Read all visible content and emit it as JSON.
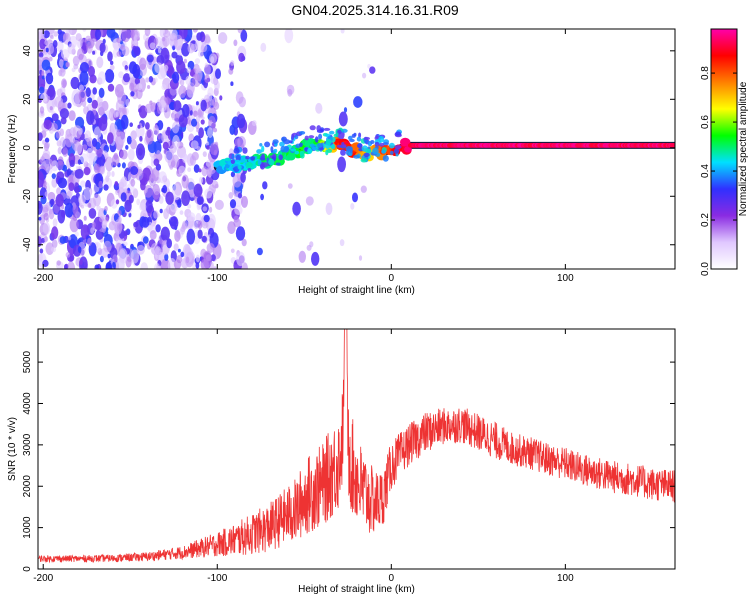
{
  "title": "GN04.2025.314.16.31.R09",
  "chart_data": [
    {
      "type": "heatmap",
      "xlabel": "Height of straight line (km)",
      "ylabel": "Frequency (Hz)",
      "xlim": [
        -203,
        163
      ],
      "ylim": [
        -50,
        49
      ],
      "x_ticks": [
        -200,
        -100,
        0,
        100
      ],
      "x_tick_labels": [
        "-200",
        "-100",
        "0",
        "100"
      ],
      "y_ticks": [
        -40,
        -20,
        0,
        20,
        40
      ],
      "y_tick_labels": [
        "-40",
        "-20",
        "0",
        "20",
        "40"
      ],
      "colorbar": {
        "label": "Normalized spectral amplitude",
        "range": [
          0,
          0.98
        ],
        "ticks": [
          0,
          0.2,
          0.4,
          0.6,
          0.8
        ],
        "tick_labels": [
          "0.0",
          "0.2",
          "0.4",
          "0.6",
          "0.8"
        ],
        "colors": [
          "#ffffff",
          "#e0c8ff",
          "#8a2be2",
          "#3030ff",
          "#00e0ff",
          "#00ff00",
          "#ffff00",
          "#ff8000",
          "#ff0000",
          "#ff00aa"
        ]
      },
      "noise_region_x": [
        -203,
        -55
      ],
      "ridge": {
        "x": [
          -100,
          -90,
          -80,
          -70,
          -60,
          -50,
          -45,
          -40,
          -35,
          -30,
          -25,
          -20,
          -15,
          -10,
          -5,
          0,
          5,
          10,
          50,
          100,
          163
        ],
        "y": [
          -8,
          -7,
          -6,
          -5,
          -3,
          0,
          2,
          1,
          1,
          1,
          0,
          -1,
          -3,
          -1,
          -2,
          -1,
          0,
          1,
          1,
          1,
          1
        ],
        "amplitude": [
          0.35,
          0.4,
          0.4,
          0.45,
          0.45,
          0.5,
          0.45,
          0.55,
          0.7,
          0.85,
          0.9,
          0.8,
          0.7,
          0.75,
          0.8,
          0.85,
          0.9,
          0.95,
          0.95,
          0.95,
          0.95
        ]
      },
      "grid": false
    },
    {
      "type": "line",
      "xlabel": "Height of straight line (km)",
      "ylabel": "SNR (10 * v/v)",
      "xlim": [
        -203,
        163
      ],
      "ylim": [
        0,
        5800
      ],
      "x_ticks": [
        -200,
        -100,
        0,
        100
      ],
      "x_tick_labels": [
        "-200",
        "-100",
        "0",
        "100"
      ],
      "y_ticks": [
        0,
        1000,
        2000,
        3000,
        4000,
        5000
      ],
      "y_tick_labels": [
        "0",
        "1000",
        "2000",
        "3000",
        "4000",
        "5000"
      ],
      "series": [
        {
          "color": "#ee3333",
          "x": [
            -203,
            -180,
            -160,
            -140,
            -120,
            -100,
            -90,
            -80,
            -70,
            -60,
            -55,
            -50,
            -45,
            -40,
            -35,
            -30,
            -28,
            -26,
            -25,
            -22,
            -20,
            -15,
            -10,
            -5,
            0,
            10,
            20,
            30,
            40,
            50,
            60,
            70,
            80,
            90,
            100,
            110,
            120,
            130,
            140,
            150,
            163
          ],
          "values": [
            250,
            250,
            260,
            300,
            400,
            600,
            700,
            850,
            1000,
            1300,
            1400,
            1700,
            1900,
            2000,
            2300,
            2600,
            3200,
            5800,
            3000,
            2400,
            2200,
            1800,
            1600,
            1700,
            2500,
            3000,
            3300,
            3450,
            3500,
            3300,
            3100,
            2900,
            2800,
            2650,
            2550,
            2400,
            2300,
            2200,
            2150,
            2050,
            2000
          ],
          "noise_amplitude": [
            80,
            80,
            90,
            110,
            160,
            300,
            400,
            500,
            600,
            700,
            800,
            900,
            1000,
            1000,
            1100,
            1200,
            1200,
            200,
            1300,
            1200,
            1100,
            1000,
            800,
            700,
            600,
            500,
            500,
            450,
            450,
            450,
            450,
            400,
            400,
            400,
            400,
            400,
            400,
            400,
            400,
            400,
            400
          ]
        }
      ],
      "grid": false
    }
  ]
}
